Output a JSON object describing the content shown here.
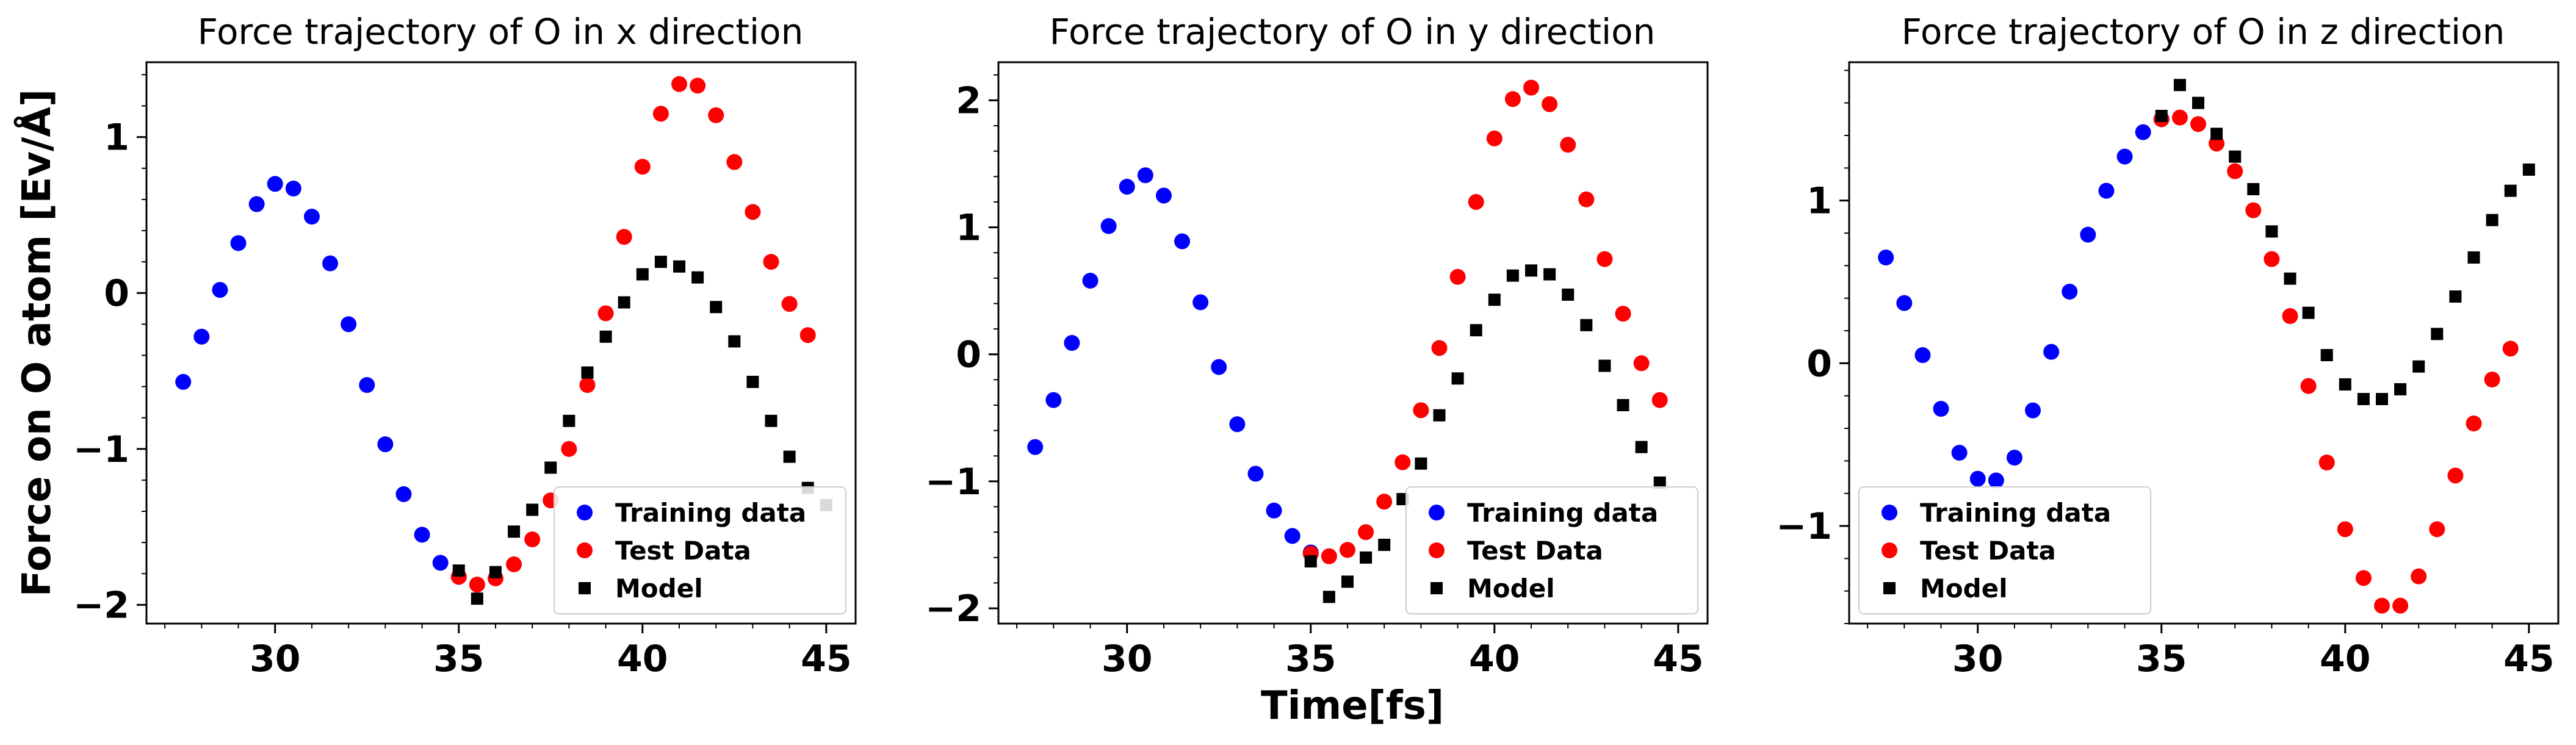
{
  "figure": {
    "xlabel": "Time[fs]",
    "ylabel": "Force on O atom [Ev/Å]",
    "legend_position": "lower right",
    "legend_labels": [
      "Training data",
      "Test Data",
      "Model"
    ],
    "colors": {
      "training": "#0000ff",
      "test": "#ff0000",
      "model": "#000000"
    }
  },
  "chart_data": [
    {
      "type": "scatter",
      "title": "Force trajectory of O in x direction",
      "xlim": [
        26.5,
        45.8
      ],
      "ylim": [
        -2.12,
        1.48
      ],
      "xticks": [
        30,
        35,
        40,
        45
      ],
      "yticks": [
        -2,
        -1,
        0,
        1
      ],
      "grid": false,
      "series": [
        {
          "name": "Training data",
          "marker": "circle",
          "color": "#0000ff",
          "x": [
            27.5,
            28.0,
            28.5,
            29.0,
            29.5,
            30.0,
            30.5,
            31.0,
            31.5,
            32.0,
            32.5,
            33.0,
            33.5,
            34.0,
            34.5,
            35.0
          ],
          "y": [
            -0.57,
            -0.28,
            0.02,
            0.32,
            0.57,
            0.7,
            0.67,
            0.49,
            0.19,
            -0.2,
            -0.59,
            -0.97,
            -1.29,
            -1.55,
            -1.73,
            -1.82
          ]
        },
        {
          "name": "Test Data",
          "marker": "circle",
          "color": "#ff0000",
          "x": [
            35.0,
            35.5,
            36.0,
            36.5,
            37.0,
            37.5,
            38.0,
            38.5,
            39.0,
            39.5,
            40.0,
            40.5,
            41.0,
            41.5,
            42.0,
            42.5,
            43.0,
            43.5,
            44.0,
            44.5
          ],
          "y": [
            -1.82,
            -1.87,
            -1.83,
            -1.74,
            -1.58,
            -1.33,
            -1.0,
            -0.59,
            -0.13,
            0.36,
            0.81,
            1.15,
            1.34,
            1.33,
            1.14,
            0.84,
            0.52,
            0.2,
            -0.07,
            -0.27
          ]
        },
        {
          "name": "Model",
          "marker": "square",
          "color": "#000000",
          "x": [
            35.0,
            35.5,
            36.0,
            36.5,
            37.0,
            37.5,
            38.0,
            38.5,
            39.0,
            39.5,
            40.0,
            40.5,
            41.0,
            41.5,
            42.0,
            42.5,
            43.0,
            43.5,
            44.0,
            44.5,
            45.0
          ],
          "y": [
            -1.78,
            -1.96,
            -1.79,
            -1.53,
            -1.39,
            -1.12,
            -0.82,
            -0.51,
            -0.28,
            -0.06,
            0.12,
            0.2,
            0.17,
            0.1,
            -0.09,
            -0.31,
            -0.57,
            -0.82,
            -1.05,
            -1.25,
            -1.36
          ]
        }
      ]
    },
    {
      "type": "scatter",
      "title": "Force trajectory of O in y direction",
      "xlim": [
        26.5,
        45.8
      ],
      "ylim": [
        -2.12,
        2.3
      ],
      "xticks": [
        30,
        35,
        40,
        45
      ],
      "yticks": [
        -2,
        -1,
        0,
        1,
        2
      ],
      "grid": false,
      "series": [
        {
          "name": "Training data",
          "marker": "circle",
          "color": "#0000ff",
          "x": [
            27.5,
            28.0,
            28.5,
            29.0,
            29.5,
            30.0,
            30.5,
            31.0,
            31.5,
            32.0,
            32.5,
            33.0,
            33.5,
            34.0,
            34.5,
            35.0
          ],
          "y": [
            -0.73,
            -0.36,
            0.09,
            0.58,
            1.01,
            1.32,
            1.41,
            1.25,
            0.89,
            0.41,
            -0.1,
            -0.55,
            -0.94,
            -1.23,
            -1.43,
            -1.56
          ]
        },
        {
          "name": "Test Data",
          "marker": "circle",
          "color": "#ff0000",
          "x": [
            35.0,
            35.5,
            36.0,
            36.5,
            37.0,
            37.5,
            38.0,
            38.5,
            39.0,
            39.5,
            40.0,
            40.5,
            41.0,
            41.5,
            42.0,
            42.5,
            43.0,
            43.5,
            44.0,
            44.5
          ],
          "y": [
            -1.57,
            -1.59,
            -1.54,
            -1.4,
            -1.16,
            -0.85,
            -0.44,
            0.05,
            0.61,
            1.2,
            1.7,
            2.01,
            2.1,
            1.97,
            1.65,
            1.22,
            0.75,
            0.32,
            -0.07,
            -0.36
          ]
        },
        {
          "name": "Model",
          "marker": "square",
          "color": "#000000",
          "x": [
            35.0,
            35.5,
            36.0,
            36.5,
            37.0,
            37.5,
            38.0,
            38.5,
            39.0,
            39.5,
            40.0,
            40.5,
            41.0,
            41.5,
            42.0,
            42.5,
            43.0,
            43.5,
            44.0,
            44.5
          ],
          "y": [
            -1.63,
            -1.91,
            -1.79,
            -1.6,
            -1.5,
            -1.14,
            -0.86,
            -0.48,
            -0.19,
            0.19,
            0.43,
            0.62,
            0.66,
            0.63,
            0.47,
            0.23,
            -0.09,
            -0.4,
            -0.73,
            -1.01
          ]
        }
      ]
    },
    {
      "type": "scatter",
      "title": "Force trajectory of O in z direction",
      "xlim": [
        26.5,
        45.8
      ],
      "ylim": [
        -1.6,
        1.85
      ],
      "xticks": [
        30,
        35,
        40,
        45
      ],
      "yticks": [
        -1,
        0,
        1
      ],
      "grid": false,
      "series": [
        {
          "name": "Training data",
          "marker": "circle",
          "color": "#0000ff",
          "x": [
            27.5,
            28.0,
            28.5,
            29.0,
            29.5,
            30.0,
            30.5,
            31.0,
            31.5,
            32.0,
            32.5,
            33.0,
            33.5,
            34.0,
            34.5,
            35.0
          ],
          "y": [
            0.65,
            0.37,
            0.05,
            -0.28,
            -0.55,
            -0.71,
            -0.72,
            -0.58,
            -0.29,
            0.07,
            0.44,
            0.79,
            1.06,
            1.27,
            1.42,
            1.5
          ]
        },
        {
          "name": "Test Data",
          "marker": "circle",
          "color": "#ff0000",
          "x": [
            35.0,
            35.5,
            36.0,
            36.5,
            37.0,
            37.5,
            38.0,
            38.5,
            39.0,
            39.5,
            40.0,
            40.5,
            41.0,
            41.5,
            42.0,
            42.5,
            43.0,
            43.5,
            44.0,
            44.5
          ],
          "y": [
            1.5,
            1.51,
            1.47,
            1.35,
            1.18,
            0.94,
            0.64,
            0.29,
            -0.14,
            -0.61,
            -1.02,
            -1.32,
            -1.49,
            -1.49,
            -1.31,
            -1.02,
            -0.69,
            -0.37,
            -0.1,
            0.09
          ]
        },
        {
          "name": "Model",
          "marker": "square",
          "color": "#000000",
          "x": [
            35.0,
            35.5,
            36.0,
            36.5,
            37.0,
            37.5,
            38.0,
            38.5,
            39.0,
            39.5,
            40.0,
            40.5,
            41.0,
            41.5,
            42.0,
            42.5,
            43.0,
            43.5,
            44.0,
            44.5,
            45.0
          ],
          "y": [
            1.52,
            1.71,
            1.6,
            1.41,
            1.27,
            1.07,
            0.81,
            0.52,
            0.31,
            0.05,
            -0.13,
            -0.22,
            -0.22,
            -0.16,
            -0.02,
            0.18,
            0.41,
            0.65,
            0.88,
            1.06,
            1.19
          ]
        }
      ]
    }
  ]
}
